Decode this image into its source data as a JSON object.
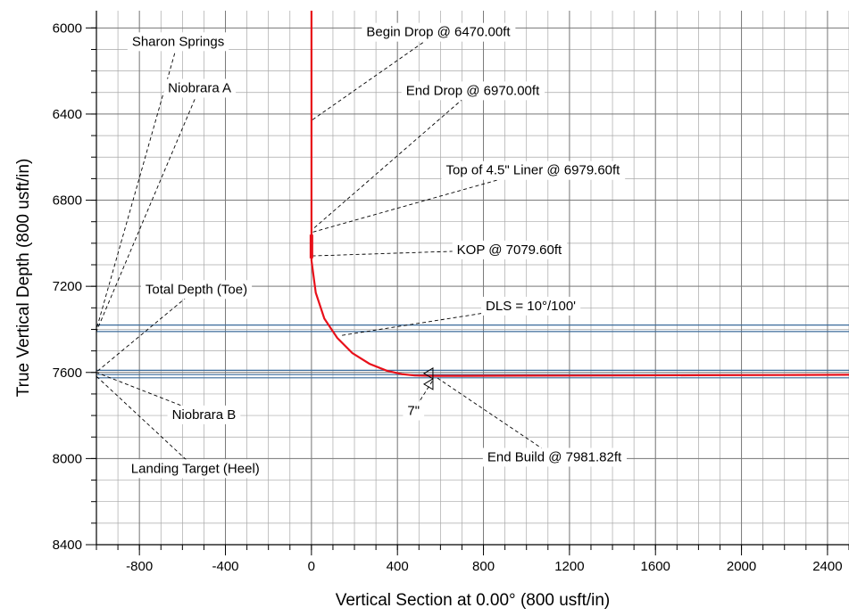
{
  "chart_data": {
    "type": "line",
    "xlabel": "Vertical Section at 0.00° (800 usft/in)",
    "ylabel": "True Vertical Depth (800 usft/in)",
    "xlim": [
      -1000,
      2500
    ],
    "ylim": [
      8400,
      5920
    ],
    "y_inverted": true,
    "grid": true,
    "x_ticks": [
      -800,
      -400,
      0,
      400,
      800,
      1200,
      1600,
      2000,
      2400
    ],
    "y_ticks": [
      6000,
      6400,
      6800,
      7200,
      7600,
      8000,
      8400
    ],
    "colors": {
      "well_path": "#e8101a",
      "formation_lines": "#3a6a9a",
      "grid": "#a8a8a8",
      "leaders": "#000000"
    },
    "series": [
      {
        "x": [
          0,
          0,
          0,
          0,
          0,
          20,
          60,
          120,
          190,
          270,
          350,
          420,
          480,
          560,
          700,
          1000,
          1400,
          1800,
          2200,
          2500
        ],
        "y": [
          5920,
          6470,
          6970,
          6979.6,
          7079.6,
          7230,
          7350,
          7440,
          7510,
          7560,
          7592,
          7608,
          7614,
          7616,
          7616,
          7615,
          7614,
          7613,
          7612,
          7611
        ]
      }
    ],
    "formations": [
      {
        "name": "Sharon Springs",
        "tvd": 7380
      },
      {
        "name": "Niobrara A",
        "tvd": 7410
      },
      {
        "name": "Niobrara B",
        "tvd": 7590
      },
      {
        "name": "Landing Target (Heel)",
        "tvd": 7625
      },
      {
        "name": "Total Depth (Toe)",
        "tvd": 7610
      }
    ],
    "casing_markers": [
      {
        "label": "7\"",
        "x": 565,
        "tvd": 7613
      }
    ],
    "annotations": [
      {
        "text": "Sharon Springs",
        "label_x": -620,
        "label_y": 6062,
        "target_x": -1000,
        "target_y": 7400
      },
      {
        "text": "Niobrara A",
        "label_x": -520,
        "label_y": 6278,
        "target_x": -1000,
        "target_y": 7410
      },
      {
        "text": "Total Depth (Toe)",
        "label_x": -535,
        "label_y": 7213,
        "target_x": -1000,
        "target_y": 7598
      },
      {
        "text": "Niobrara B",
        "label_x": -500,
        "label_y": 7795,
        "target_x": -1000,
        "target_y": 7600
      },
      {
        "text": "Landing Target (Heel)",
        "label_x": -540,
        "label_y": 8045,
        "target_x": -1000,
        "target_y": 7618
      },
      {
        "text": "Begin Drop @ 6470.00ft",
        "label_x": 590,
        "label_y": 6018,
        "target_x": 0,
        "target_y": 6430
      },
      {
        "text": "End Drop @ 6970.00ft",
        "label_x": 750,
        "label_y": 6290,
        "target_x": 0,
        "target_y": 6940
      },
      {
        "text": "Top of 4.5\" Liner @ 6979.60ft",
        "label_x": 1030,
        "label_y": 6660,
        "target_x": 0,
        "target_y": 6950
      },
      {
        "text": "KOP @ 7079.60ft",
        "label_x": 920,
        "label_y": 7029,
        "target_x": 0,
        "target_y": 7059
      },
      {
        "text": "DLS = 10°/100'",
        "label_x": 1020,
        "label_y": 7290,
        "target_x": 140,
        "target_y": 7428
      },
      {
        "text": "End Build @ 7981.82ft",
        "label_x": 1130,
        "label_y": 7992,
        "target_x": 580,
        "target_y": 7622
      },
      {
        "text": "7\"",
        "label_x": 475,
        "label_y": 7777,
        "target_x": 565,
        "target_y": 7636
      }
    ]
  }
}
